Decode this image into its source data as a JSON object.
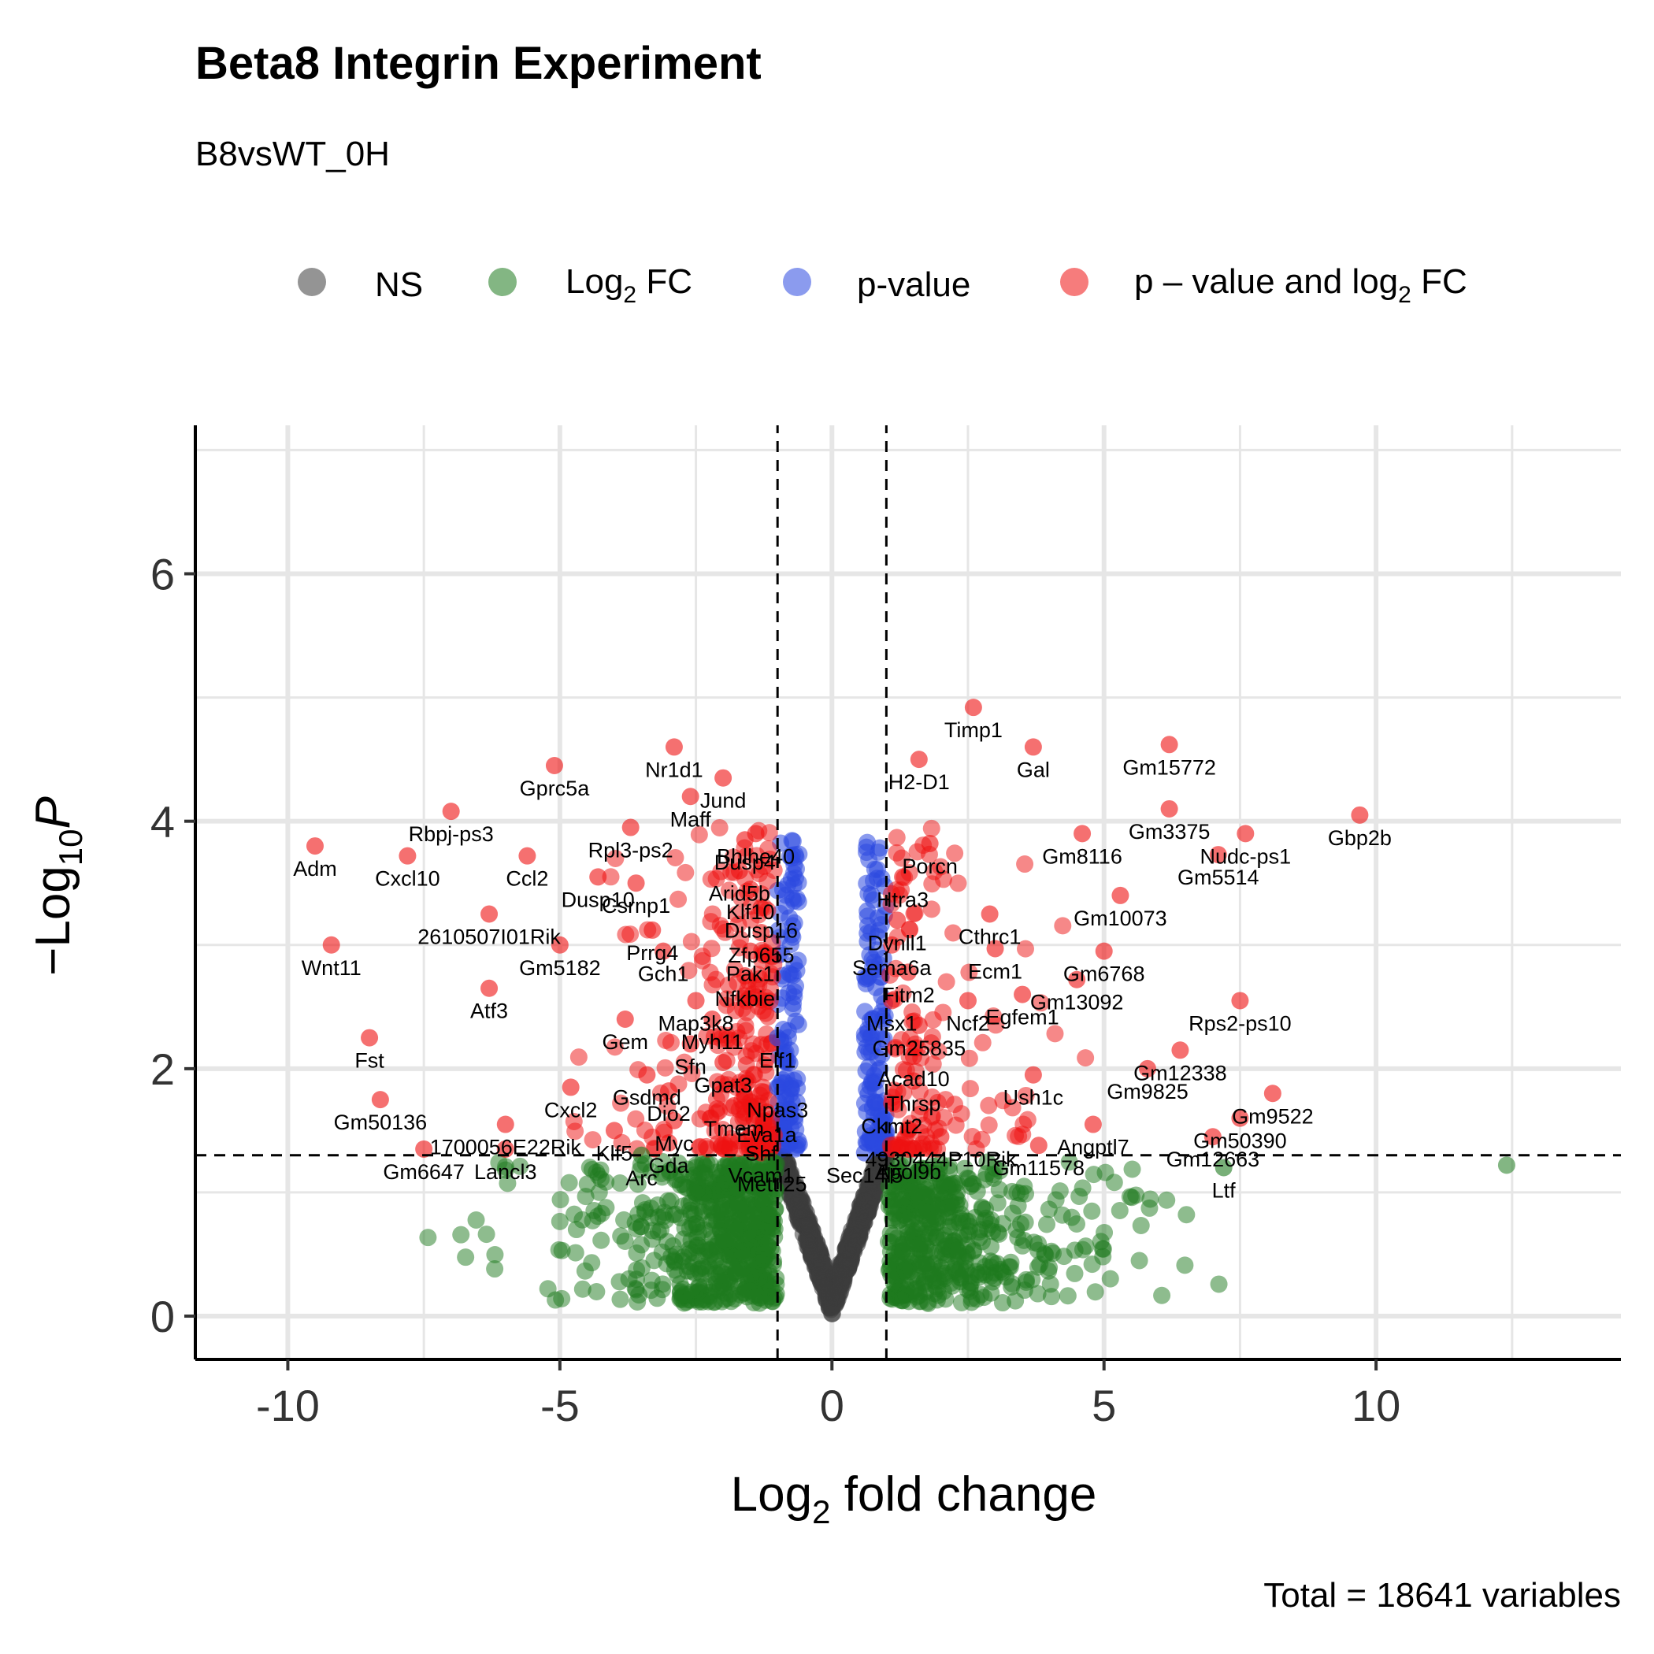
{
  "chart_data": {
    "type": "scatter",
    "title": "Beta8 Integrin Experiment",
    "subtitle": "B8vsWT_0H",
    "caption": "Total = 18641 variables",
    "xlabel": {
      "main": "Log",
      "sub": "2",
      "rest": " fold change"
    },
    "ylabel": {
      "prefix": "−Log",
      "sub": "10",
      "italic": "P"
    },
    "xlim": [
      -11.7,
      14.5
    ],
    "ylim": [
      -0.35,
      7.2
    ],
    "x_ticks": [
      -10,
      -5,
      0,
      5,
      10
    ],
    "x_tick_labels": [
      "-10",
      "-5",
      "0",
      "5",
      "10"
    ],
    "y_ticks": [
      0,
      2,
      4,
      6
    ],
    "y_tick_labels": [
      "0",
      "2",
      "4",
      "6"
    ],
    "fc_cutoff": 1,
    "p_cutoff_line": 1.3,
    "grid": true,
    "legend": {
      "position": "top",
      "items": [
        {
          "key": "NS",
          "text": "NS",
          "color": "#3c3c3c"
        },
        {
          "key": "FC",
          "text": "Log",
          "sub": "2",
          "rest": " FC",
          "color": "#1e7a1e"
        },
        {
          "key": "P",
          "text": "p-value",
          "color": "#2b48e0"
        },
        {
          "key": "PFC",
          "text": "p – value and log",
          "sub": "2",
          "rest": " FC",
          "color": "#ee1111"
        }
      ]
    },
    "colors": {
      "NS": "#3c3c3c",
      "FC": "#1e7a1e",
      "P": "#2b48e0",
      "PFC": "#ee1111"
    },
    "labeled_genes": [
      {
        "gene": "Gbp2b",
        "x": 9.7,
        "y": 4.05
      },
      {
        "gene": "Timp1",
        "x": 2.6,
        "y": 4.92
      },
      {
        "gene": "Gal",
        "x": 3.7,
        "y": 4.6
      },
      {
        "gene": "H2-D1",
        "x": 1.6,
        "y": 4.5
      },
      {
        "gene": "Gm15772",
        "x": 6.2,
        "y": 4.62
      },
      {
        "gene": "Gm3375",
        "x": 6.2,
        "y": 4.1
      },
      {
        "gene": "Gm8116",
        "x": 4.6,
        "y": 3.9
      },
      {
        "gene": "Nudc-ps1",
        "x": 7.6,
        "y": 3.9
      },
      {
        "gene": "Gm5514",
        "x": 7.1,
        "y": 3.73
      },
      {
        "gene": "Porcn",
        "x": 1.8,
        "y": 3.82
      },
      {
        "gene": "Htra3",
        "x": 1.3,
        "y": 3.55
      },
      {
        "gene": "Gm10073",
        "x": 5.3,
        "y": 3.4
      },
      {
        "gene": "Dynll1",
        "x": 1.2,
        "y": 3.2
      },
      {
        "gene": "Cthrc1",
        "x": 2.9,
        "y": 3.25
      },
      {
        "gene": "Sema6a",
        "x": 1.1,
        "y": 3.0
      },
      {
        "gene": "Ecm1",
        "x": 3.0,
        "y": 2.97
      },
      {
        "gene": "Gm6768",
        "x": 5.0,
        "y": 2.95
      },
      {
        "gene": "Fitm2",
        "x": 1.4,
        "y": 2.78
      },
      {
        "gene": "Gm13092",
        "x": 4.5,
        "y": 2.72
      },
      {
        "gene": "Msx1",
        "x": 1.1,
        "y": 2.55
      },
      {
        "gene": "Ncf2",
        "x": 2.5,
        "y": 2.55
      },
      {
        "gene": "Egfem1",
        "x": 3.5,
        "y": 2.6
      },
      {
        "gene": "Rps2-ps10",
        "x": 7.5,
        "y": 2.55
      },
      {
        "gene": "Gm25835",
        "x": 1.6,
        "y": 2.35
      },
      {
        "gene": "Gm12338",
        "x": 6.4,
        "y": 2.15
      },
      {
        "gene": "Acad10",
        "x": 1.5,
        "y": 2.1
      },
      {
        "gene": "Gm9825",
        "x": 5.8,
        "y": 2.0
      },
      {
        "gene": "Thrsp",
        "x": 1.5,
        "y": 1.9
      },
      {
        "gene": "Ush1c",
        "x": 3.7,
        "y": 1.95
      },
      {
        "gene": "Gm9522",
        "x": 8.1,
        "y": 1.8
      },
      {
        "gene": "Ckmt2",
        "x": 1.1,
        "y": 1.72
      },
      {
        "gene": "Angptl7",
        "x": 4.8,
        "y": 1.55
      },
      {
        "gene": "Gm50390",
        "x": 7.5,
        "y": 1.6
      },
      {
        "gene": "4930444P10Rik",
        "x": 2.0,
        "y": 1.45
      },
      {
        "gene": "Sec14l5",
        "x": 0.6,
        "y": 1.32
      },
      {
        "gene": "Gm11578",
        "x": 3.8,
        "y": 1.38
      },
      {
        "gene": "Gm12663",
        "x": 7.0,
        "y": 1.45
      },
      {
        "gene": "Ltf",
        "x": 7.2,
        "y": 1.2
      },
      {
        "gene": "Apol9b",
        "x": 1.4,
        "y": 1.35
      },
      {
        "gene": "Nr1d1",
        "x": -2.9,
        "y": 4.6
      },
      {
        "gene": "Maff",
        "x": -2.6,
        "y": 4.2
      },
      {
        "gene": "Jund",
        "x": -2.0,
        "y": 4.35
      },
      {
        "gene": "Bhlhe40",
        "x": -1.4,
        "y": 3.9
      },
      {
        "gene": "Gprc5a",
        "x": -5.1,
        "y": 4.45
      },
      {
        "gene": "Rpl3-ps2",
        "x": -3.7,
        "y": 3.95
      },
      {
        "gene": "Rbpj-ps3",
        "x": -7.0,
        "y": 4.08
      },
      {
        "gene": "Dusp10",
        "x": -4.3,
        "y": 3.55
      },
      {
        "gene": "Dusp4",
        "x": -1.6,
        "y": 3.85
      },
      {
        "gene": "Adm",
        "x": -9.5,
        "y": 3.8
      },
      {
        "gene": "Cxcl10",
        "x": -7.8,
        "y": 3.72
      },
      {
        "gene": "Ccl2",
        "x": -5.6,
        "y": 3.72
      },
      {
        "gene": "Arid5b",
        "x": -1.7,
        "y": 3.6
      },
      {
        "gene": "Csrnp1",
        "x": -3.6,
        "y": 3.5
      },
      {
        "gene": "Klf10",
        "x": -1.5,
        "y": 3.45
      },
      {
        "gene": "Dusp16",
        "x": -1.3,
        "y": 3.3
      },
      {
        "gene": "2610507I01Rik",
        "x": -6.3,
        "y": 3.25
      },
      {
        "gene": "Prrg4",
        "x": -3.3,
        "y": 3.12
      },
      {
        "gene": "Zfp655",
        "x": -1.3,
        "y": 3.1
      },
      {
        "gene": "Gm5182",
        "x": -5.0,
        "y": 3.0
      },
      {
        "gene": "Gch1",
        "x": -3.1,
        "y": 2.95
      },
      {
        "gene": "Pak1",
        "x": -1.5,
        "y": 2.95
      },
      {
        "gene": "Wnt11",
        "x": -9.2,
        "y": 3.0
      },
      {
        "gene": "Nfkbie",
        "x": -1.6,
        "y": 2.75
      },
      {
        "gene": "Atf3",
        "x": -6.3,
        "y": 2.65
      },
      {
        "gene": "Map3k8",
        "x": -2.5,
        "y": 2.55
      },
      {
        "gene": "Gem",
        "x": -3.8,
        "y": 2.4
      },
      {
        "gene": "Myh11",
        "x": -2.2,
        "y": 2.4
      },
      {
        "gene": "Sfn",
        "x": -2.6,
        "y": 2.2
      },
      {
        "gene": "Elf1",
        "x": -1.0,
        "y": 2.25
      },
      {
        "gene": "Fst",
        "x": -8.5,
        "y": 2.25
      },
      {
        "gene": "Gpat3",
        "x": -2.0,
        "y": 2.05
      },
      {
        "gene": "Gsdmd",
        "x": -3.4,
        "y": 1.95
      },
      {
        "gene": "Npas3",
        "x": -1.0,
        "y": 1.85
      },
      {
        "gene": "Cxcl2",
        "x": -4.8,
        "y": 1.85
      },
      {
        "gene": "Dio2",
        "x": -3.0,
        "y": 1.82
      },
      {
        "gene": "Gm50136",
        "x": -8.3,
        "y": 1.75
      },
      {
        "gene": "Eva1a",
        "x": -1.2,
        "y": 1.65
      },
      {
        "gene": "Myc",
        "x": -2.9,
        "y": 1.58
      },
      {
        "gene": "1700056E22Rik",
        "x": -6.0,
        "y": 1.55
      },
      {
        "gene": "Klf5",
        "x": -4.0,
        "y": 1.5
      },
      {
        "gene": "Shf",
        "x": -1.3,
        "y": 1.5
      },
      {
        "gene": "Gda",
        "x": -3.0,
        "y": 1.4
      },
      {
        "gene": "Vcam1",
        "x": -1.3,
        "y": 1.32
      },
      {
        "gene": "Gm6647",
        "x": -7.5,
        "y": 1.35
      },
      {
        "gene": "Lancl3",
        "x": -6.0,
        "y": 1.35
      },
      {
        "gene": "Arc",
        "x": -3.5,
        "y": 1.3
      },
      {
        "gene": "Mettl25",
        "x": -1.1,
        "y": 1.25
      },
      {
        "gene": "Tmem",
        "x": -1.8,
        "y": 1.7
      }
    ]
  }
}
